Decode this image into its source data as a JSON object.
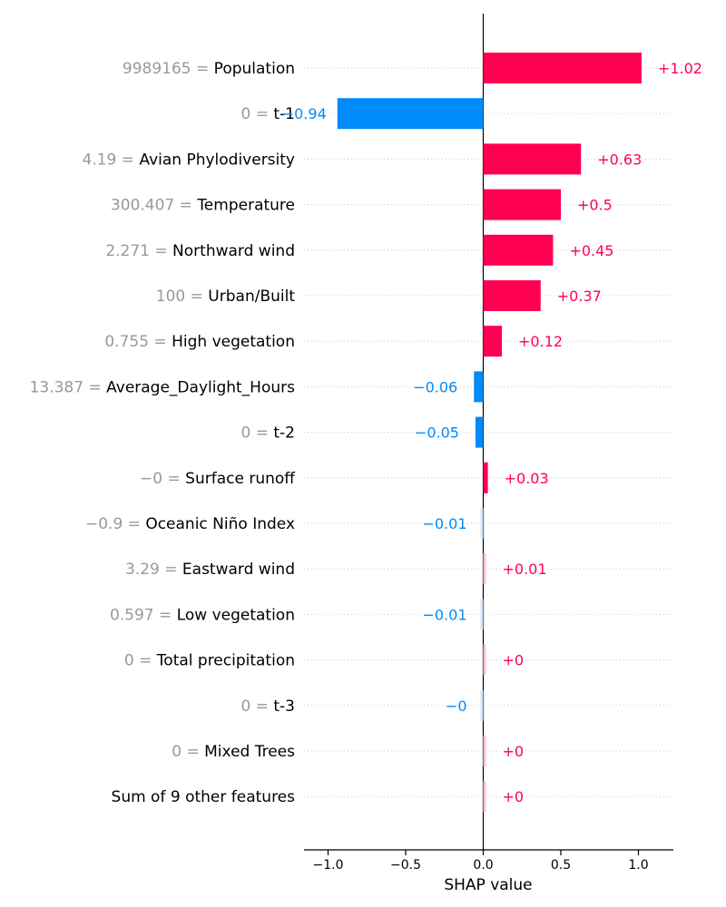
{
  "chart_data": {
    "type": "bar",
    "title": "",
    "xlabel": "SHAP value",
    "ylabel": "",
    "xlim": [
      -1.12,
      1.22
    ],
    "xticks": [
      -1.0,
      -0.5,
      0.0,
      0.5,
      1.0
    ],
    "xtick_labels": [
      "−1.0",
      "−0.5",
      "0.0",
      "0.5",
      "1.0"
    ],
    "orientation": "horizontal",
    "legend": "none",
    "grid": "dotted horizontal row guides",
    "colors": {
      "positive": "#ff0051",
      "negative": "#008bfb",
      "small_positive": "#ffc3d5",
      "small_negative": "#d1e6fa",
      "feature_value": "#999999",
      "feature_name": "#000000",
      "axis": "#000000",
      "grid": "#cccccc"
    },
    "rows": [
      {
        "feature_value": "9989165",
        "feature": "Population",
        "value": 1.02,
        "label": "+1.02"
      },
      {
        "feature_value": "0",
        "feature": "t-1",
        "value": -0.94,
        "label": "−0.94"
      },
      {
        "feature_value": "4.19",
        "feature": "Avian Phylodiversity",
        "value": 0.63,
        "label": "+0.63"
      },
      {
        "feature_value": "300.407",
        "feature": "Temperature",
        "value": 0.5,
        "label": "+0.5"
      },
      {
        "feature_value": "2.271",
        "feature": "Northward wind",
        "value": 0.45,
        "label": "+0.45"
      },
      {
        "feature_value": "100",
        "feature": "Urban/Built",
        "value": 0.37,
        "label": "+0.37"
      },
      {
        "feature_value": "0.755",
        "feature": "High vegetation",
        "value": 0.12,
        "label": "+0.12"
      },
      {
        "feature_value": "13.387",
        "feature": "Average_Daylight_Hours",
        "value": -0.06,
        "label": "−0.06"
      },
      {
        "feature_value": "0",
        "feature": "t-2",
        "value": -0.05,
        "label": "−0.05"
      },
      {
        "feature_value": "−0",
        "feature": "Surface runoff",
        "value": 0.03,
        "label": "+0.03"
      },
      {
        "feature_value": "−0.9",
        "feature": "Oceanic Niño Index",
        "value": -0.01,
        "label": "−0.01"
      },
      {
        "feature_value": "3.29",
        "feature": "Eastward wind",
        "value": 0.01,
        "label": "+0.01"
      },
      {
        "feature_value": "0.597",
        "feature": "Low vegetation",
        "value": -0.01,
        "label": "−0.01"
      },
      {
        "feature_value": "0",
        "feature": "Total precipitation",
        "value": 0.0,
        "label": "+0"
      },
      {
        "feature_value": "0",
        "feature": "t-3",
        "value": -0.0,
        "label": "−0"
      },
      {
        "feature_value": "0",
        "feature": "Mixed Trees",
        "value": 0.0,
        "label": "+0"
      },
      {
        "feature_value": "",
        "feature": "Sum of 9 other features",
        "value": 0.0,
        "label": "+0"
      }
    ]
  }
}
